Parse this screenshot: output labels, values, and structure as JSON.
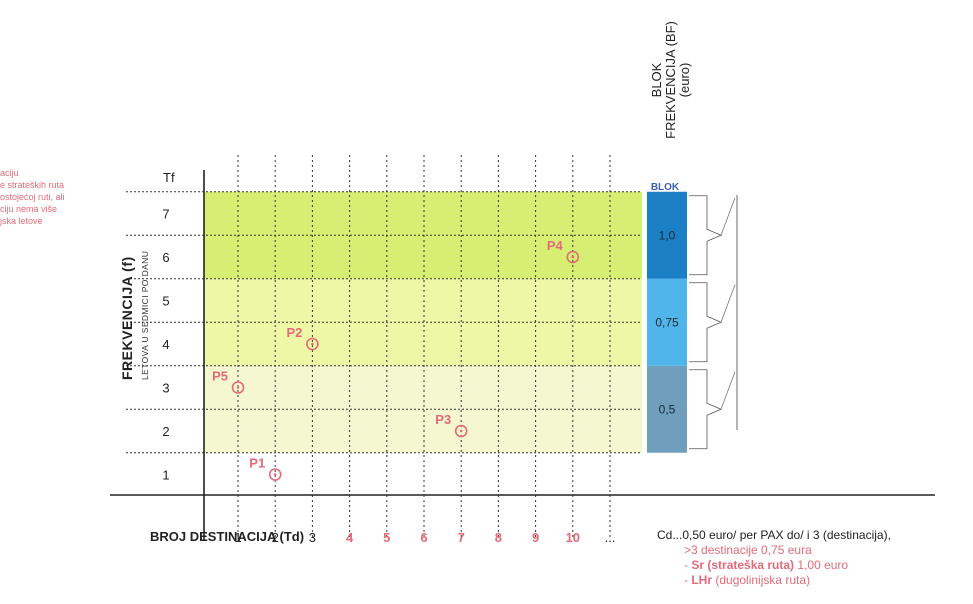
{
  "left_snippet": [
    "aciju",
    "e strateških ruta",
    "ostojećoj ruti, ali",
    "ciju nema više",
    "",
    "jska letove"
  ],
  "y_title": "FREKVENCIJA (f)",
  "y_subtitle": "LETOVA U SEDMICI PO DANU",
  "y_axis_top_label": "Tf",
  "x_axis_title": "BROJ DESTINACIJA (Td)",
  "block_title_lines": [
    "BLOK",
    "FREKVENCIJA (BF)",
    "(euro)"
  ],
  "block_header": "BLOK",
  "footer": {
    "line1": "Cd...0,50 euro/ per PAX do/ i 3 (destinacija),",
    "line2": ">3 destinacije 0,75 eura",
    "line3_bold": "Sr (strateška ruta)",
    "line3_rest": " 1,00 euro",
    "line4_bold": "LHr",
    "line4_rest": " (dugolinijska ruta)"
  },
  "colors": {
    "band_low": "#f4f7cf",
    "band_mid": "#eef7a6",
    "band_high": "#d6ee72",
    "block_low": "#6f9fbd",
    "block_mid": "#4fb5ea",
    "block_high": "#1b7fc6",
    "accent_red": "#e26b7a",
    "tick_black": "#222222"
  },
  "chart_data": {
    "type": "scatter",
    "title": "",
    "xlabel": "BROJ DESTINACIJA (Td)",
    "ylabel": "FREKVENCIJA (f)",
    "x_ticks": [
      {
        "label": "1",
        "color": "black"
      },
      {
        "label": "2",
        "color": "black"
      },
      {
        "label": "3",
        "color": "black"
      },
      {
        "label": "4",
        "color": "red"
      },
      {
        "label": "5",
        "color": "red"
      },
      {
        "label": "6",
        "color": "red"
      },
      {
        "label": "7",
        "color": "red"
      },
      {
        "label": "8",
        "color": "red"
      },
      {
        "label": "9",
        "color": "red"
      },
      {
        "label": "10",
        "color": "red"
      },
      {
        "label": "...",
        "color": "black"
      }
    ],
    "y_ticks": [
      "1",
      "2",
      "3",
      "4",
      "5",
      "6",
      "7"
    ],
    "xlim": [
      0,
      11
    ],
    "ylim": [
      0,
      8
    ],
    "grid": true,
    "bands": [
      {
        "y_from": 1.5,
        "y_to": 3.5,
        "level": "low"
      },
      {
        "y_from": 3.5,
        "y_to": 5.5,
        "level": "mid"
      },
      {
        "y_from": 5.5,
        "y_to": 7.5,
        "level": "high"
      }
    ],
    "block_values": [
      {
        "y_from": 1.5,
        "y_to": 3.5,
        "label": "0,5",
        "level": "low"
      },
      {
        "y_from": 3.5,
        "y_to": 5.5,
        "label": "0,75",
        "level": "mid"
      },
      {
        "y_from": 5.5,
        "y_to": 7.5,
        "label": "1,0",
        "level": "high"
      }
    ],
    "points": [
      {
        "name": "P1",
        "x": 2,
        "y": 1
      },
      {
        "name": "P2",
        "x": 3,
        "y": 4
      },
      {
        "name": "P3",
        "x": 7,
        "y": 2
      },
      {
        "name": "P4",
        "x": 10,
        "y": 6
      },
      {
        "name": "P5",
        "x": 1,
        "y": 3
      }
    ]
  }
}
